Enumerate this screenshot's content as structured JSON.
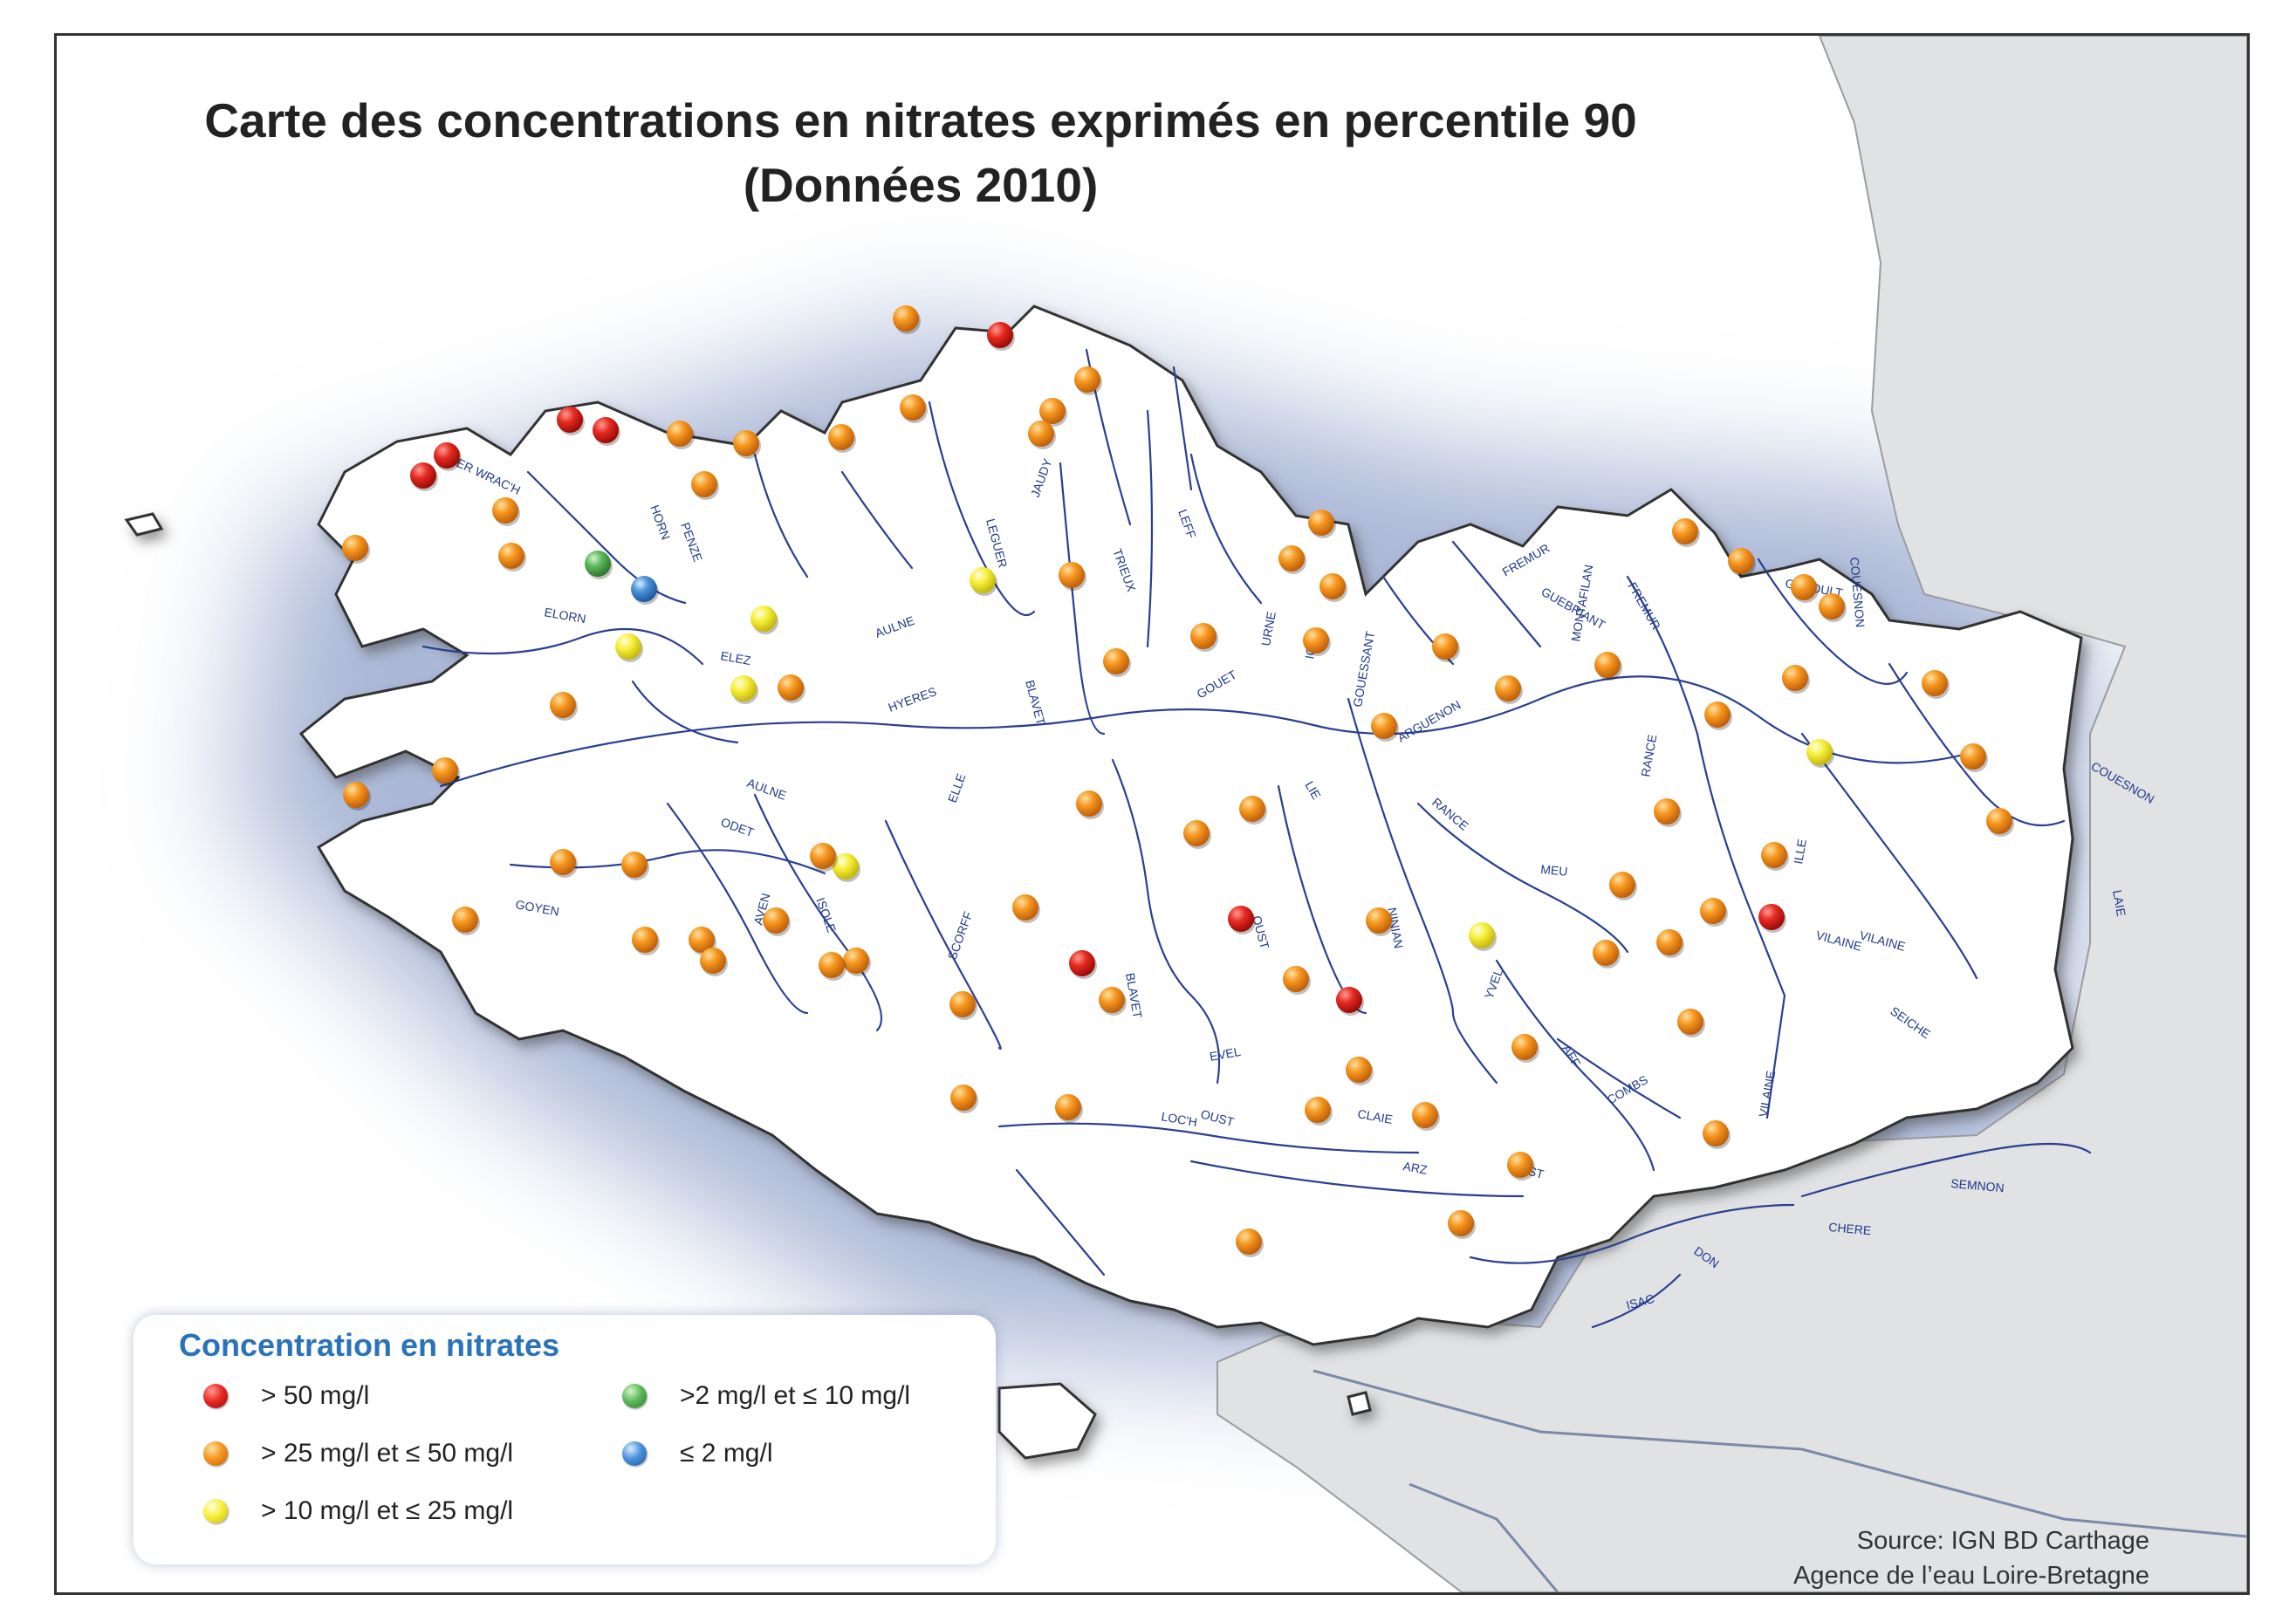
{
  "title": {
    "line1": "Carte des concentrations en nitrates exprimés en percentile 90",
    "line2": "(Données 2010)"
  },
  "colors": {
    "red": "#e0201c",
    "orange": "#f4921e",
    "yellow": "#f5ee3a",
    "green": "#5cb85c",
    "blue": "#4a90d9",
    "neighbor_land": "#e1e2e4",
    "river": "#1f3a8a"
  },
  "legend": {
    "title": "Concentration en nitrates",
    "items": [
      {
        "key": "red",
        "label": "> 50 mg/l"
      },
      {
        "key": "orange",
        "label": "> 25 mg/l et ≤ 50 mg/l"
      },
      {
        "key": "yellow",
        "label": "> 10 mg/l et ≤ 25 mg/l"
      },
      {
        "key": "green",
        "label": ">2 mg/l et ≤ 10 mg/l"
      },
      {
        "key": "blue",
        "label": "≤ 2 mg/l"
      }
    ]
  },
  "source": {
    "line1": "Source: IGN BD Carthage",
    "line2": "Agence de l’eau Loire-Bretagne"
  },
  "rivers": [
    "ABER WRAC'H",
    "HORN",
    "PENZE",
    "ELORN",
    "AULNE",
    "ELEZ",
    "HYERES",
    "LEGUER",
    "JAUDY",
    "LEFF",
    "TRIEUX",
    "BLAVET",
    "GOUET",
    "URNE",
    "IC",
    "GOUESSANT",
    "ARGUENON",
    "FREMUR",
    "GUEBRIANT",
    "MONTAFILAN",
    "FREMUR",
    "GUYOULT",
    "COUESNON",
    "RANCE",
    "RANCE",
    "LIE",
    "ODET",
    "ELLE",
    "GOYEN",
    "AVEN",
    "ISOLE",
    "SCORFF",
    "OUST",
    "OUST",
    "NINIAN",
    "YVEL",
    "MEU",
    "ILLE",
    "VILAINE",
    "VILAINE",
    "SEICHE",
    "AFF",
    "COMBS",
    "VILAINE",
    "EVEL",
    "LOC'H",
    "CLAIE",
    "ARZ",
    "OUST",
    "SEMNON",
    "CHERE",
    "DON",
    "ISAC",
    "AULNE",
    "BLAVET",
    "LAIE",
    "COUESNON"
  ]
}
